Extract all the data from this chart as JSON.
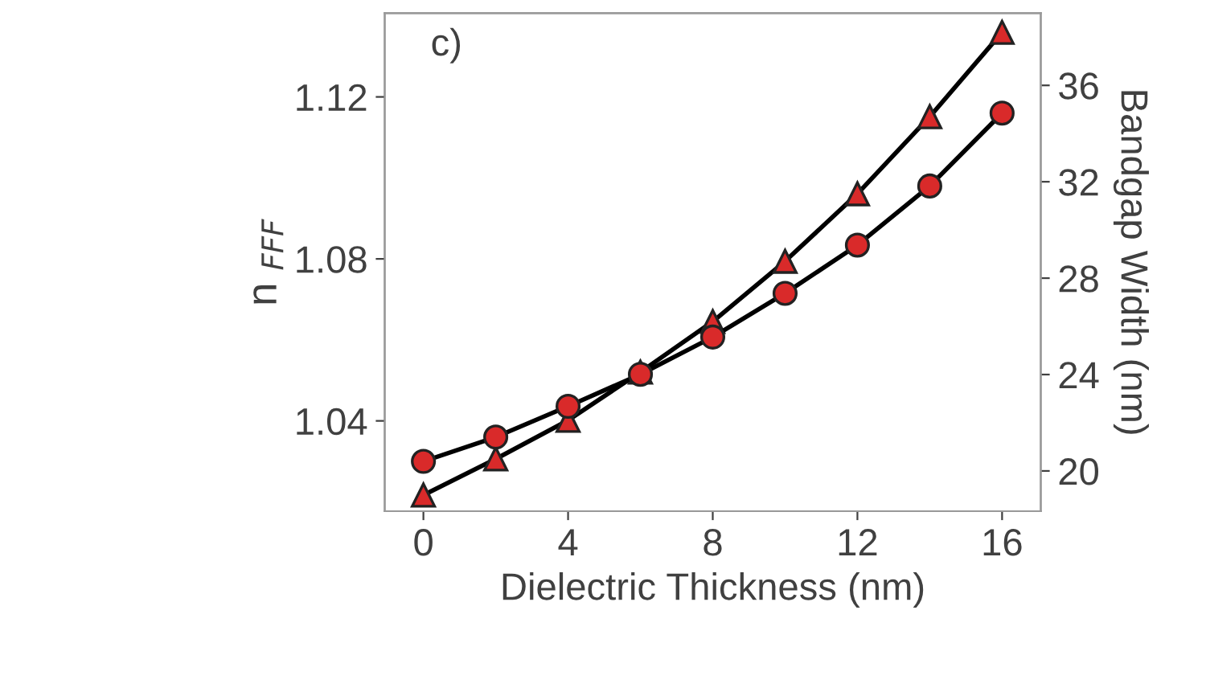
{
  "chart_data": {
    "type": "line",
    "xlabel": "Dielectric Thickness (nm)",
    "ylabel": "n $_{FFF}$",
    "y2label": "Bandgap Width (nm)",
    "annotations": [
      "c)"
    ],
    "x": [
      0,
      2,
      4,
      6,
      8,
      10,
      12,
      14,
      16
    ],
    "series": [
      {
        "color": "#d92a2a",
        "marker": "circle",
        "values": [
          1.03,
          1.036,
          1.0436,
          1.0515,
          1.0607,
          1.0715,
          1.0834,
          1.098,
          1.116
        ]
      },
      {
        "color": "#d92a2a",
        "marker": "triangle",
        "axis": "y2",
        "values": [
          19.0,
          20.5,
          22.1,
          24.1,
          26.2,
          28.7,
          31.5,
          34.7,
          38.2
        ]
      }
    ],
    "xlim": [
      -1.07,
      17.07
    ],
    "xticks": [
      0,
      4,
      8,
      12,
      16
    ],
    "ylim": [
      1.0177,
      1.1407
    ],
    "yticks": [
      1.04,
      1.08,
      1.12
    ],
    "y2lim": [
      18.33,
      39.0
    ],
    "y2ticks": [
      20,
      24,
      28,
      32,
      36
    ],
    "grid": false
  }
}
